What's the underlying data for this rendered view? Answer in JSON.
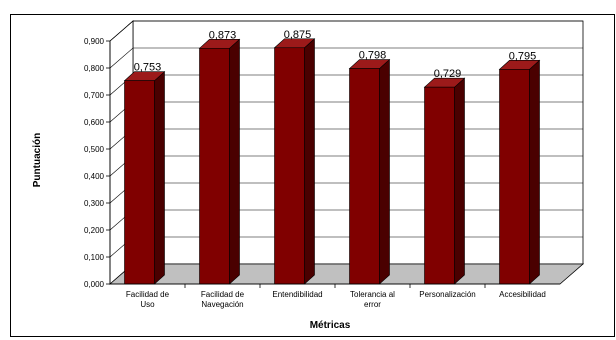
{
  "chart_data": {
    "type": "bar",
    "style": "3d-column",
    "categories": [
      [
        "Facilidad de",
        "Uso"
      ],
      [
        "Facilidad de",
        "Navegación"
      ],
      [
        "Entendibilidad"
      ],
      [
        "Tolerancia al",
        "error"
      ],
      [
        "Personalización"
      ],
      [
        "Accesibilidad"
      ]
    ],
    "values": [
      0.753,
      0.873,
      0.875,
      0.798,
      0.729,
      0.795
    ],
    "data_labels": [
      "0,753",
      "0,873",
      "0,875",
      "0,798",
      "0,729",
      "0,795"
    ],
    "xlabel": "Métricas",
    "ylabel": "Puntuación",
    "ylim": [
      0,
      0.9
    ],
    "y_ticks": [
      0,
      0.1,
      0.2,
      0.3,
      0.4,
      0.5,
      0.6,
      0.7,
      0.8,
      0.9
    ],
    "y_tick_labels": [
      "0,000",
      "0,100",
      "0,200",
      "0,300",
      "0,400",
      "0,500",
      "0,600",
      "0,700",
      "0,800",
      "0,900"
    ],
    "grid": true,
    "legend": "none",
    "colors": {
      "bar_front": "#800000",
      "bar_side": "#4a0000",
      "bar_top": "#9c1a1a",
      "floor": "#c0c0c0",
      "wall": "#ffffff",
      "gridline": "#000000"
    }
  }
}
